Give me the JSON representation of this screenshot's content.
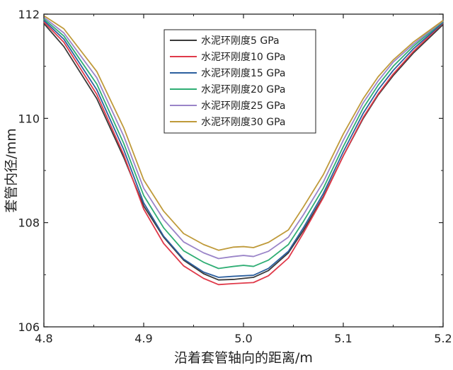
{
  "chart_data": {
    "type": "line",
    "title": "",
    "xlabel": "沿着套管轴向的距离/m",
    "ylabel": "套管内径/mm",
    "xlim": [
      4.8,
      5.2
    ],
    "ylim": [
      106,
      112
    ],
    "xticks": [
      4.8,
      4.9,
      5.0,
      5.1,
      5.2
    ],
    "xtick_labels": [
      "4.8",
      "4.9",
      "5.0",
      "5.1",
      "5.2"
    ],
    "yticks": [
      106,
      108,
      110,
      112
    ],
    "ytick_labels": [
      "106",
      "108",
      "110",
      "112"
    ],
    "grid": false,
    "legend_position": "top-center",
    "x": [
      4.8,
      4.82,
      4.853,
      4.88,
      4.9,
      4.92,
      4.94,
      4.96,
      4.975,
      4.99,
      5.0,
      5.01,
      5.025,
      5.045,
      5.06,
      5.08,
      5.1,
      5.12,
      5.135,
      5.15,
      5.17,
      5.2
    ],
    "series": [
      {
        "name": "水泥环刚度5 GPa",
        "color": "#3a3a3a",
        "values": [
          111.82,
          111.38,
          110.38,
          109.25,
          108.32,
          107.72,
          107.28,
          107.02,
          106.9,
          106.91,
          106.93,
          106.95,
          107.08,
          107.42,
          107.85,
          108.5,
          109.28,
          110.0,
          110.45,
          110.82,
          111.25,
          111.8
        ]
      },
      {
        "name": "水泥环刚度10 GPa",
        "color": "#e03a4a",
        "values": [
          111.85,
          111.46,
          110.46,
          109.3,
          108.26,
          107.6,
          107.17,
          106.93,
          106.81,
          106.83,
          106.84,
          106.85,
          106.98,
          107.32,
          107.8,
          108.48,
          109.28,
          110.02,
          110.47,
          110.85,
          111.28,
          111.83
        ]
      },
      {
        "name": "水泥环刚度15 GPa",
        "color": "#2c5f9e",
        "values": [
          111.88,
          111.52,
          110.55,
          109.4,
          108.38,
          107.74,
          107.3,
          107.05,
          106.95,
          106.97,
          106.98,
          106.99,
          107.12,
          107.45,
          107.9,
          108.56,
          109.36,
          110.1,
          110.55,
          110.92,
          111.33,
          111.84
        ]
      },
      {
        "name": "水泥环刚度20 GPa",
        "color": "#2fae74",
        "values": [
          111.91,
          111.58,
          110.66,
          109.52,
          108.52,
          107.9,
          107.46,
          107.24,
          107.12,
          107.16,
          107.18,
          107.16,
          107.28,
          107.58,
          108.02,
          108.66,
          109.46,
          110.2,
          110.64,
          111.0,
          111.38,
          111.86
        ]
      },
      {
        "name": "水泥环刚度25 GPa",
        "color": "#9a84c8",
        "values": [
          111.94,
          111.64,
          110.78,
          109.66,
          108.66,
          108.06,
          107.63,
          107.42,
          107.31,
          107.35,
          107.37,
          107.35,
          107.45,
          107.72,
          108.15,
          108.78,
          109.58,
          110.3,
          110.72,
          111.08,
          111.42,
          111.87
        ]
      },
      {
        "name": "水泥环刚度30 GPa",
        "color": "#bf9a3a",
        "values": [
          111.97,
          111.72,
          110.9,
          109.82,
          108.82,
          108.22,
          107.79,
          107.58,
          107.47,
          107.53,
          107.54,
          107.52,
          107.62,
          107.86,
          108.3,
          108.92,
          109.7,
          110.38,
          110.8,
          111.12,
          111.46,
          111.88
        ]
      }
    ]
  }
}
